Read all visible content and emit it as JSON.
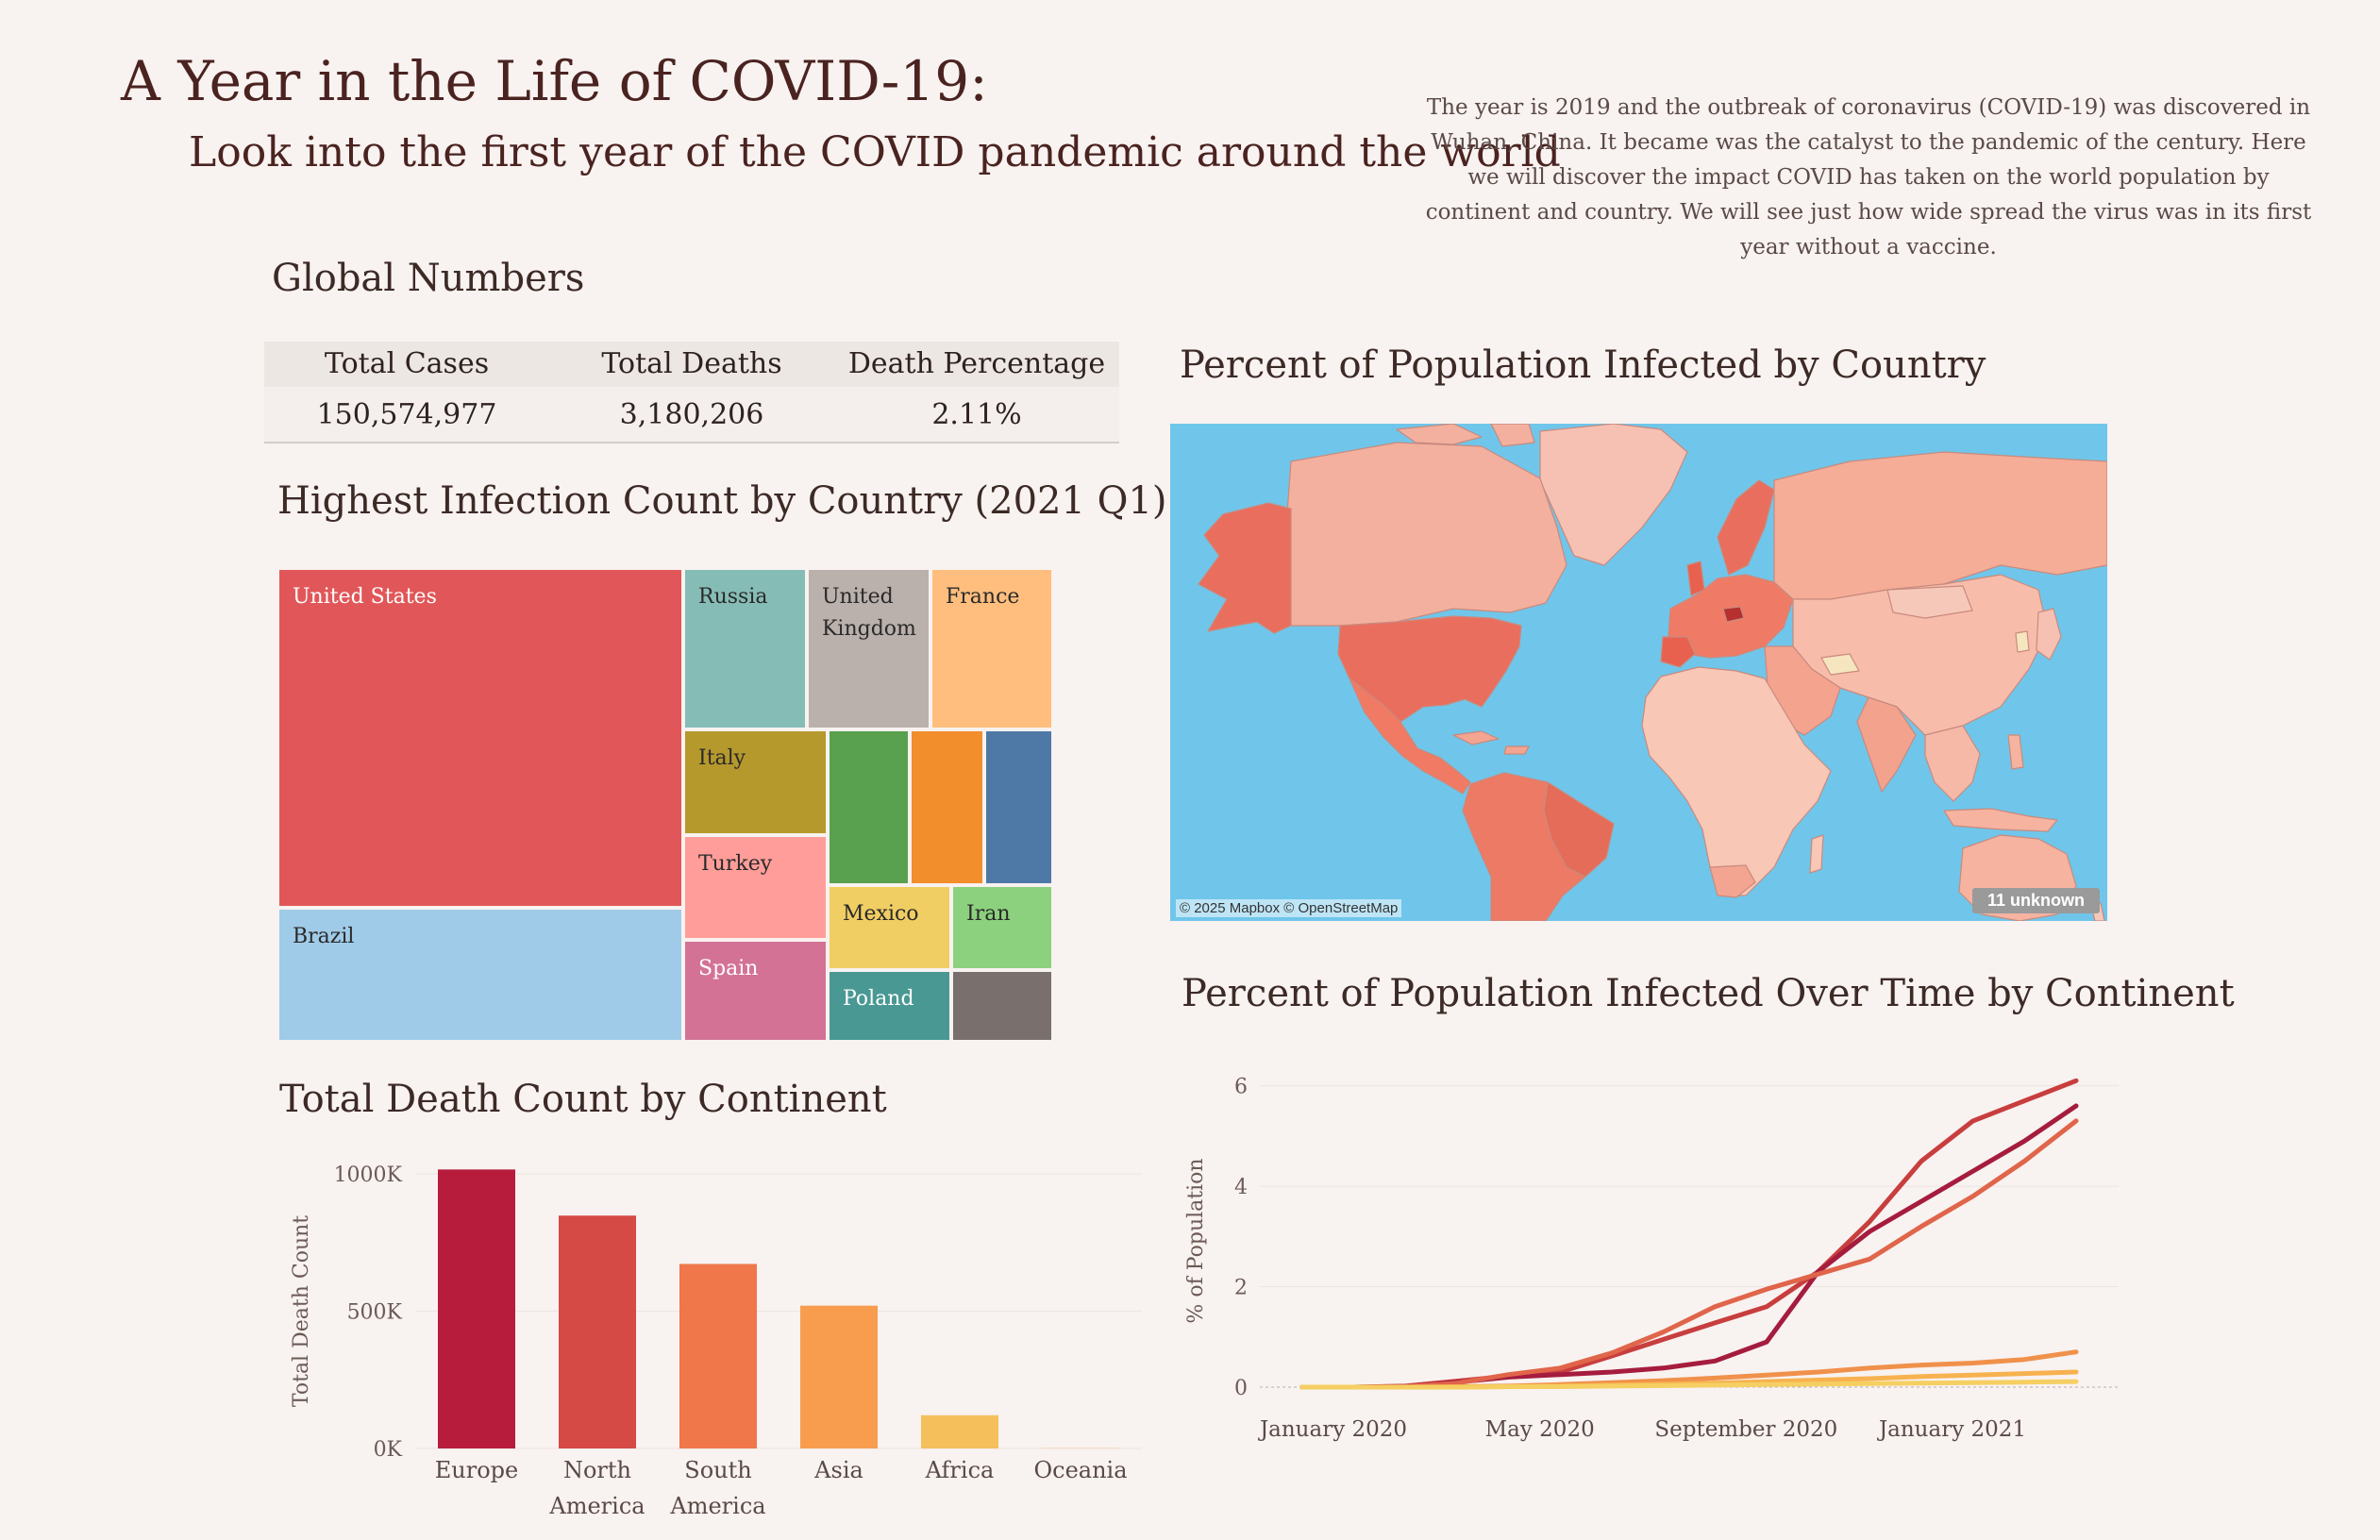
{
  "header": {
    "title": "A Year in the Life of COVID-19:",
    "subtitle": "Look into the first year of the COVID pandemic around the world",
    "intro": "The year is 2019 and the outbreak of coronavirus (COVID-19) was discovered in Wuhan, China. It became was the catalyst to the pandemic of the century. Here we will discover the impact COVID has taken on the world population by continent and country. We will see just how wide spread the virus was in its first year without a vaccine."
  },
  "global": {
    "title": "Global Numbers",
    "headers": [
      "Total Cases",
      "Total Deaths",
      "Death Percentage"
    ],
    "values": [
      "150,574,977",
      "3,180,206",
      "2.11%"
    ]
  },
  "treemap": {
    "title": "Highest Infection Count by Country (2021 Q1)",
    "countries": [
      {
        "label": "United States",
        "color": "#e15759",
        "text": "#ffffff"
      },
      {
        "label": "Brazil",
        "color": "#a0cbe8",
        "text": "#2a2a2a"
      },
      {
        "label": "Russia",
        "color": "#86bcb6",
        "text": "#2a2a2a"
      },
      {
        "label": "United Kingdom",
        "color": "#bab0ac",
        "text": "#2a2a2a"
      },
      {
        "label": "France",
        "color": "#ffbe7d",
        "text": "#2a2a2a"
      },
      {
        "label": "Italy",
        "color": "#b6992d",
        "text": "#2a2a2a"
      },
      {
        "label": "",
        "color": "#59a14f",
        "text": "#2a2a2a"
      },
      {
        "label": "",
        "color": "#f28e2b",
        "text": "#2a2a2a"
      },
      {
        "label": "",
        "color": "#4e79a7",
        "text": "#2a2a2a"
      },
      {
        "label": "Turkey",
        "color": "#ff9d9a",
        "text": "#2a2a2a"
      },
      {
        "label": "Mexico",
        "color": "#f1ce63",
        "text": "#2a2a2a"
      },
      {
        "label": "Iran",
        "color": "#8cd17d",
        "text": "#2a2a2a"
      },
      {
        "label": "Spain",
        "color": "#d37295",
        "text": "#ffffff"
      },
      {
        "label": "Poland",
        "color": "#499894",
        "text": "#ffffff"
      },
      {
        "label": "",
        "color": "#79706e",
        "text": "#ffffff"
      }
    ]
  },
  "map": {
    "title": "Percent of Population Infected  by Country",
    "attribution": "© 2025 Mapbox © OpenStreetMap",
    "unknown_badge": "11 unknown",
    "ocean_color": "#6fc6ea"
  },
  "chart_data": [
    {
      "type": "bar",
      "title": "Total Death Count by Continent",
      "categories": [
        "Europe",
        "North America",
        "South America",
        "Asia",
        "Africa",
        "Oceania"
      ],
      "category_lines": [
        [
          "Europe"
        ],
        [
          "North",
          "America"
        ],
        [
          "South",
          "America"
        ],
        [
          "Asia"
        ],
        [
          "Africa"
        ],
        [
          "Oceania"
        ]
      ],
      "values": [
        1016000,
        848000,
        672000,
        520000,
        121000,
        1000
      ],
      "colors": [
        "#b71c3c",
        "#d54a44",
        "#ef774a",
        "#f89d4e",
        "#f5bf5c",
        "#f5bf5c"
      ],
      "ylabel": "Total Death Count",
      "ylim": [
        0,
        1000000
      ],
      "yticks": [
        {
          "value": 0,
          "label": "0K"
        },
        {
          "value": 500000,
          "label": "500K"
        },
        {
          "value": 1000000,
          "label": "1000K"
        }
      ],
      "grid": true
    },
    {
      "type": "line",
      "title": "Percent of Population Infected Over Time by Continent",
      "ylabel": "% of Population",
      "x": [
        "2020-01",
        "2020-02",
        "2020-03",
        "2020-04",
        "2020-05",
        "2020-06",
        "2020-07",
        "2020-08",
        "2020-09",
        "2020-10",
        "2020-11",
        "2020-12",
        "2021-01",
        "2021-02",
        "2021-03",
        "2021-04"
      ],
      "xticks": [
        {
          "value": "2020-01",
          "label": "January 2020"
        },
        {
          "value": "2020-05",
          "label": "May 2020"
        },
        {
          "value": "2020-09",
          "label": "September 2020"
        },
        {
          "value": "2021-01",
          "label": "January 2021"
        }
      ],
      "ylim": [
        0,
        6.2
      ],
      "yticks": [
        0,
        2,
        4,
        6
      ],
      "grid": true,
      "series": [
        {
          "color": "#c83e3e",
          "values": [
            0,
            0,
            0.02,
            0.12,
            0.22,
            0.3,
            0.62,
            0.95,
            1.28,
            1.6,
            2.3,
            3.3,
            4.5,
            5.3,
            5.7,
            6.1
          ]
        },
        {
          "color": "#a51c3e",
          "values": [
            0,
            0,
            0.01,
            0.1,
            0.2,
            0.25,
            0.3,
            0.38,
            0.52,
            0.9,
            2.3,
            3.1,
            3.7,
            4.3,
            4.9,
            5.6
          ]
        },
        {
          "color": "#e0654a",
          "values": [
            0,
            0,
            0.01,
            0.08,
            0.25,
            0.38,
            0.68,
            1.1,
            1.6,
            1.95,
            2.25,
            2.55,
            3.2,
            3.8,
            4.5,
            5.3
          ]
        },
        {
          "color": "#f0914b",
          "values": [
            0,
            0,
            0,
            0.01,
            0.02,
            0.05,
            0.09,
            0.13,
            0.18,
            0.24,
            0.3,
            0.38,
            0.44,
            0.48,
            0.55,
            0.7
          ]
        },
        {
          "color": "#f7b24f",
          "values": [
            0,
            0,
            0,
            0,
            0.01,
            0.02,
            0.04,
            0.06,
            0.08,
            0.11,
            0.14,
            0.17,
            0.21,
            0.24,
            0.27,
            0.3
          ]
        },
        {
          "color": "#f5cf62",
          "values": [
            0,
            0,
            0,
            0,
            0.01,
            0.01,
            0.02,
            0.03,
            0.04,
            0.05,
            0.06,
            0.07,
            0.08,
            0.09,
            0.1,
            0.11
          ]
        }
      ]
    }
  ]
}
